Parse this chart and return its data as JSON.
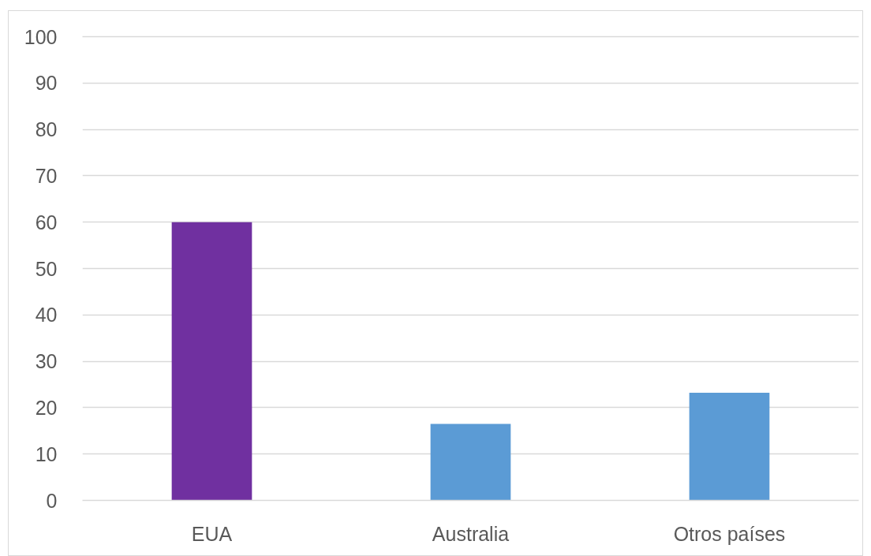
{
  "chart_data": {
    "type": "bar",
    "categories": [
      "EUA",
      "Australia",
      "Otros países"
    ],
    "values": [
      60,
      16.5,
      23.2
    ],
    "colors": [
      "#7030a0",
      "#5b9bd5",
      "#5b9bd5"
    ],
    "ylim": [
      0,
      100
    ],
    "yticks": [
      0,
      10,
      20,
      30,
      40,
      50,
      60,
      70,
      80,
      90,
      100
    ],
    "grid": "y"
  }
}
